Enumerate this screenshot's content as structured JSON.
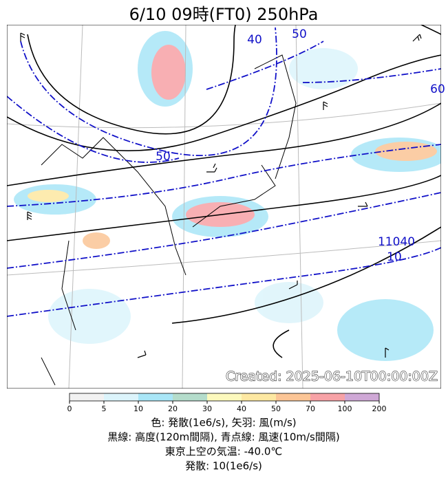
{
  "title": "6/10  09時(FT0)    250hPa",
  "watermark": "Created: 2025-06-10T00:00:00Z",
  "contour_labels": [
    "40",
    "50",
    "50",
    "60",
    "11040",
    "10"
  ],
  "colorbar": {
    "ticks": [
      0,
      5,
      10,
      20,
      30,
      40,
      50,
      70,
      100,
      200
    ],
    "colors": [
      "#f2f2f2",
      "#dcf4fb",
      "#a9e6f7",
      "#b4dccb",
      "#fcf9bd",
      "#fde8a2",
      "#fbc596",
      "#f7a2a6",
      "#cfa8d6"
    ]
  },
  "caption": [
    "色: 発散(1e6/s),  矢羽: 風(m/s)",
    "黒線: 高度(120m間隔),  青点線: 風速(10m/s間隔)",
    "東京上空の気温: -40.0℃",
    "発散: 10(1e6/s)"
  ]
}
